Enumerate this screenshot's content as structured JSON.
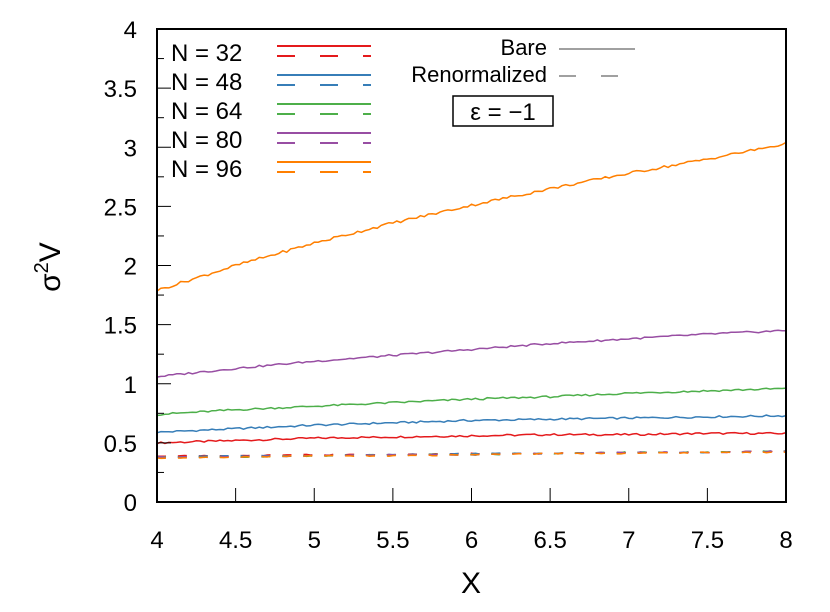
{
  "chart_data": {
    "type": "line",
    "title": "",
    "xlabel": "X",
    "ylabel": "σ²V",
    "ylabel_base": "σ",
    "ylabel_sup": "2",
    "ylabel_tail": "V",
    "xlim": [
      4,
      8
    ],
    "ylim": [
      0,
      4
    ],
    "grid": false,
    "legend_position": "top-left",
    "x_ticks": [
      4,
      4.5,
      5,
      5.5,
      6,
      6.5,
      7,
      7.5,
      8
    ],
    "x_tick_labels": [
      "4",
      "4.5",
      "5",
      "5.5",
      "6",
      "6.5",
      "7",
      "7.5",
      "8"
    ],
    "y_ticks": [
      0,
      0.5,
      1,
      1.5,
      2,
      2.5,
      3,
      3.5,
      4
    ],
    "y_tick_labels": [
      "0",
      "0.5",
      "1",
      "1.5",
      "2",
      "2.5",
      "3",
      "3.5",
      "4"
    ],
    "x": [
      4,
      4.5,
      5,
      5.5,
      6,
      6.5,
      7,
      7.5,
      8
    ],
    "series": [
      {
        "name": "N = 32",
        "style": "Bare",
        "color": "#e41a1c",
        "dash": "solid",
        "values": [
          0.5,
          0.52,
          0.54,
          0.55,
          0.56,
          0.57,
          0.57,
          0.58,
          0.58
        ]
      },
      {
        "name": "N = 48",
        "style": "Bare",
        "color": "#377eb8",
        "dash": "solid",
        "values": [
          0.59,
          0.62,
          0.65,
          0.67,
          0.69,
          0.7,
          0.71,
          0.72,
          0.73
        ]
      },
      {
        "name": "N = 64",
        "style": "Bare",
        "color": "#4daf4a",
        "dash": "solid",
        "values": [
          0.74,
          0.78,
          0.81,
          0.84,
          0.87,
          0.89,
          0.92,
          0.94,
          0.96
        ]
      },
      {
        "name": "N = 80",
        "style": "Bare",
        "color": "#984ea3",
        "dash": "solid",
        "values": [
          1.06,
          1.13,
          1.19,
          1.24,
          1.29,
          1.34,
          1.38,
          1.42,
          1.45
        ]
      },
      {
        "name": "N = 96",
        "style": "Bare",
        "color": "#ff7f00",
        "dash": "solid",
        "values": [
          1.79,
          2.0,
          2.19,
          2.36,
          2.51,
          2.65,
          2.78,
          2.9,
          3.03
        ]
      },
      {
        "name": "N = 32",
        "style": "Renormalized",
        "color": "#e41a1c",
        "dash": "dashed",
        "values": [
          0.39,
          0.39,
          0.4,
          0.4,
          0.41,
          0.41,
          0.42,
          0.42,
          0.43
        ]
      },
      {
        "name": "N = 48",
        "style": "Renormalized",
        "color": "#377eb8",
        "dash": "dashed",
        "values": [
          0.38,
          0.39,
          0.39,
          0.4,
          0.41,
          0.41,
          0.42,
          0.42,
          0.43
        ]
      },
      {
        "name": "N = 64",
        "style": "Renormalized",
        "color": "#4daf4a",
        "dash": "dashed",
        "values": [
          0.38,
          0.38,
          0.39,
          0.4,
          0.4,
          0.41,
          0.42,
          0.42,
          0.43
        ]
      },
      {
        "name": "N = 80",
        "style": "Renormalized",
        "color": "#984ea3",
        "dash": "dashed",
        "values": [
          0.38,
          0.38,
          0.39,
          0.4,
          0.4,
          0.41,
          0.42,
          0.42,
          0.43
        ]
      },
      {
        "name": "N = 96",
        "style": "Renormalized",
        "color": "#ff7f00",
        "dash": "dashed",
        "values": [
          0.37,
          0.38,
          0.39,
          0.39,
          0.4,
          0.41,
          0.41,
          0.42,
          0.42
        ]
      }
    ],
    "legend": {
      "entries": [
        {
          "label": "N = 32",
          "color": "#e41a1c"
        },
        {
          "label": "N = 48",
          "color": "#377eb8"
        },
        {
          "label": "N = 64",
          "color": "#4daf4a"
        },
        {
          "label": "N = 80",
          "color": "#984ea3"
        },
        {
          "label": "N = 96",
          "color": "#ff7f00"
        }
      ],
      "style_entries": [
        {
          "label": "Bare",
          "dash": "solid",
          "color": "#a0a0a0"
        },
        {
          "label": "Renormalized",
          "dash": "dashed",
          "color": "#a0a0a0"
        }
      ]
    },
    "annotations": [
      {
        "text": "ε = −1",
        "boxed": true
      }
    ]
  }
}
